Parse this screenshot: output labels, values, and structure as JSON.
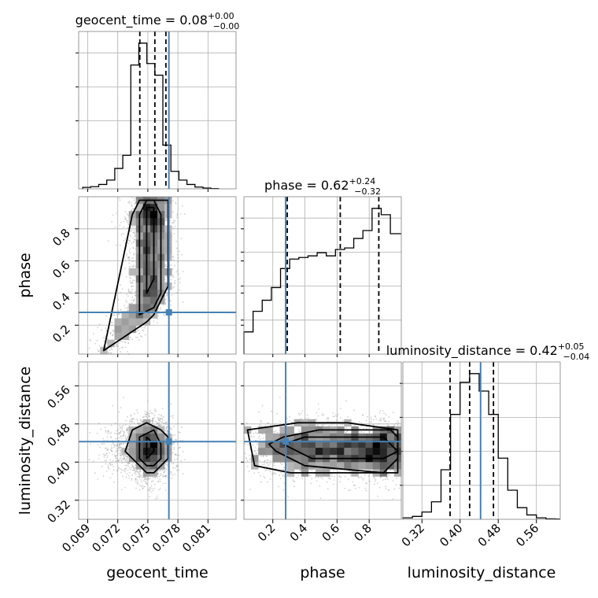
{
  "chart_data": {
    "type": "corner",
    "parameters": [
      "geocent_time",
      "phase",
      "luminosity_distance"
    ],
    "axis_labels": {
      "x": [
        "geocent_time",
        "phase",
        "luminosity_distance"
      ],
      "y": [
        "",
        "phase",
        "luminosity_distance"
      ]
    },
    "titles": [
      {
        "param": "geocent_time",
        "text": "geocent_time = 0.08",
        "sup": "+0.00",
        "sub": "−0.00"
      },
      {
        "param": "phase",
        "text": "phase = 0.62",
        "sup": "+0.24",
        "sub": "−0.32"
      },
      {
        "param": "luminosity_distance",
        "text": "luminosity_distance = 0.42",
        "sup": "+0.05",
        "sub": "−0.04"
      }
    ],
    "ranges": {
      "geocent_time": [
        0.0681,
        0.0838
      ],
      "phase": [
        0.02,
        1.0
      ],
      "luminosity_distance": [
        0.28,
        0.61
      ]
    },
    "ticks": {
      "geocent_time": [
        0.069,
        0.072,
        0.075,
        0.078,
        0.081
      ],
      "phase": [
        0.2,
        0.4,
        0.6,
        0.8
      ],
      "luminosity_distance": [
        0.32,
        0.4,
        0.48,
        0.56
      ]
    },
    "tick_labels": {
      "geocent_time": [
        "0.069",
        "0.072",
        "0.075",
        "0.078",
        "0.081"
      ],
      "phase": [
        "0.2",
        "0.4",
        "0.6",
        "0.8"
      ],
      "luminosity_distance": [
        "0.32",
        "0.40",
        "0.48",
        "0.56"
      ]
    },
    "truths": {
      "geocent_time": 0.0771,
      "phase": 0.28,
      "luminosity_distance": 0.443
    },
    "quantiles": {
      "geocent_time": [
        0.0742,
        0.0757,
        0.0768
      ],
      "phase": [
        0.29,
        0.62,
        0.86
      ],
      "luminosity_distance": [
        0.379,
        0.42,
        0.47
      ]
    },
    "histograms": {
      "geocent_time": {
        "edges": [
          0.0685,
          0.0693,
          0.0701,
          0.0709,
          0.0717,
          0.0725,
          0.0733,
          0.0741,
          0.0749,
          0.0757,
          0.0765,
          0.0773,
          0.0781,
          0.0789,
          0.0797,
          0.0805,
          0.0813,
          0.0821
        ],
        "counts": [
          1,
          1.5,
          3,
          6,
          14,
          23,
          85,
          100,
          86,
          78,
          30,
          12,
          6,
          3,
          1.2,
          0.5,
          0.2
        ]
      },
      "phase": {
        "edges": [
          0.02,
          0.077,
          0.134,
          0.191,
          0.248,
          0.305,
          0.362,
          0.419,
          0.476,
          0.533,
          0.59,
          0.647,
          0.704,
          0.761,
          0.818,
          0.875,
          0.932,
          1.0
        ],
        "counts": [
          14,
          27,
          34,
          42,
          54,
          60,
          61,
          62,
          64,
          62,
          66,
          67,
          73,
          78,
          92,
          88,
          76
        ]
      },
      "luminosity_distance": {
        "edges": [
          0.28,
          0.3,
          0.32,
          0.34,
          0.36,
          0.38,
          0.4,
          0.42,
          0.44,
          0.46,
          0.48,
          0.5,
          0.52,
          0.54,
          0.56,
          0.58,
          0.6,
          0.61
        ],
        "counts": [
          1,
          2,
          5,
          12,
          34,
          72,
          94,
          100,
          88,
          72,
          42,
          20,
          8,
          3,
          1,
          0.3,
          0.2
        ]
      }
    },
    "colors": {
      "truth": "#4682b4",
      "hist": "#000000",
      "grid": "#b0b0b0"
    },
    "grid": true
  }
}
